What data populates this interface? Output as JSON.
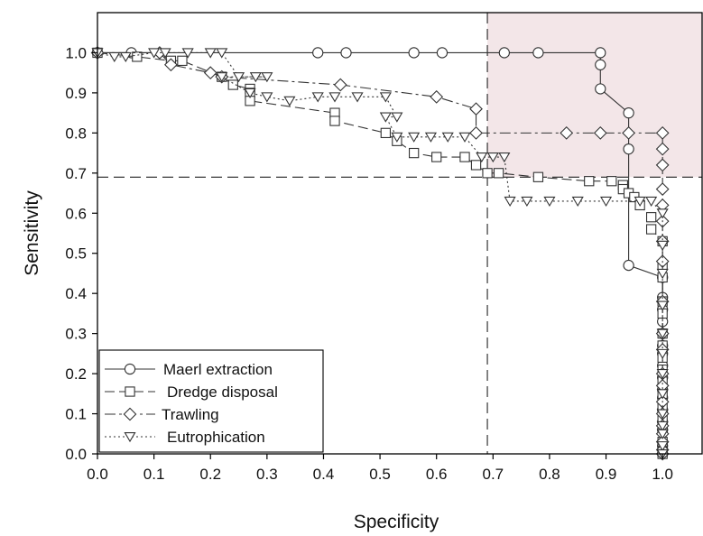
{
  "chart_data": {
    "type": "line",
    "xlabel": "Specificity",
    "ylabel": "Sensitivity",
    "xlim": [
      0,
      1.07
    ],
    "ylim": [
      0,
      1.1
    ],
    "x_ticks": [
      "0.0",
      "0.1",
      "0.2",
      "0.3",
      "0.4",
      "0.5",
      "0.6",
      "0.7",
      "0.8",
      "0.9",
      "1.0"
    ],
    "y_ticks": [
      "0.0",
      "0.1",
      "0.2",
      "0.3",
      "0.4",
      "0.5",
      "0.6",
      "0.7",
      "0.8",
      "0.9",
      "1.0"
    ],
    "threshold": {
      "specificity": 0.69,
      "sensitivity": 0.69
    },
    "shaded_region": {
      "x_from": 0.69,
      "y_from": 0.69,
      "color": "#f3e6e8"
    },
    "legend_placement": "bottom-left",
    "series": [
      {
        "name": "Maerl extraction",
        "marker": "circle",
        "dash": "solid",
        "x": [
          0.0,
          0.06,
          0.39,
          0.44,
          0.56,
          0.61,
          0.72,
          0.78,
          0.89,
          0.89,
          0.89,
          0.94,
          0.94,
          0.94,
          1.0,
          1.0,
          1.0,
          1.0,
          1.0,
          1.0,
          1.0,
          1.0,
          1.0,
          1.0,
          1.0,
          1.0,
          1.0,
          1.0,
          1.0,
          1.0,
          1.0,
          1.0
        ],
        "y": [
          1.0,
          1.0,
          1.0,
          1.0,
          1.0,
          1.0,
          1.0,
          1.0,
          1.0,
          0.97,
          0.91,
          0.85,
          0.76,
          0.47,
          0.44,
          0.39,
          0.36,
          0.33,
          0.3,
          0.27,
          0.25,
          0.22,
          0.19,
          0.16,
          0.14,
          0.11,
          0.08,
          0.06,
          0.03,
          0.02,
          0.01,
          0.0
        ]
      },
      {
        "name": "Dredge disposal",
        "marker": "square",
        "dash": "dashed",
        "x": [
          0.0,
          0.07,
          0.13,
          0.15,
          0.22,
          0.24,
          0.27,
          0.27,
          0.27,
          0.42,
          0.42,
          0.51,
          0.53,
          0.56,
          0.6,
          0.65,
          0.67,
          0.69,
          0.71,
          0.78,
          0.87,
          0.91,
          0.93,
          0.93,
          0.94,
          0.95,
          0.96,
          0.98,
          0.98,
          1.0,
          1.0,
          1.0,
          1.0,
          1.0,
          1.0,
          1.0,
          1.0,
          1.0,
          1.0,
          1.0,
          1.0,
          1.0,
          1.0,
          1.0,
          1.0
        ],
        "y": [
          1.0,
          0.99,
          0.98,
          0.98,
          0.94,
          0.92,
          0.91,
          0.9,
          0.88,
          0.85,
          0.83,
          0.8,
          0.78,
          0.75,
          0.74,
          0.74,
          0.72,
          0.7,
          0.7,
          0.69,
          0.68,
          0.68,
          0.67,
          0.66,
          0.65,
          0.64,
          0.62,
          0.59,
          0.56,
          0.53,
          0.47,
          0.44,
          0.38,
          0.35,
          0.3,
          0.27,
          0.24,
          0.21,
          0.18,
          0.15,
          0.12,
          0.09,
          0.06,
          0.03,
          0.0
        ]
      },
      {
        "name": "Trawling",
        "marker": "diamond",
        "dash": "dashdot",
        "x": [
          0.0,
          0.11,
          0.13,
          0.2,
          0.22,
          0.43,
          0.6,
          0.67,
          0.67,
          0.83,
          0.89,
          0.94,
          1.0,
          1.0,
          1.0,
          1.0,
          1.0,
          1.0,
          1.0,
          1.0,
          1.0,
          1.0,
          1.0,
          1.0,
          1.0,
          1.0,
          1.0,
          1.0,
          1.0,
          1.0,
          1.0,
          1.0
        ],
        "y": [
          1.0,
          1.0,
          0.97,
          0.95,
          0.94,
          0.92,
          0.89,
          0.86,
          0.8,
          0.8,
          0.8,
          0.8,
          0.8,
          0.76,
          0.72,
          0.66,
          0.62,
          0.58,
          0.53,
          0.48,
          0.38,
          0.3,
          0.26,
          0.2,
          0.17,
          0.13,
          0.1,
          0.07,
          0.05,
          0.03,
          0.01,
          0.0
        ]
      },
      {
        "name": "Eutrophication",
        "marker": "triangle-down",
        "dash": "dotted",
        "x": [
          0.0,
          0.03,
          0.05,
          0.1,
          0.12,
          0.16,
          0.2,
          0.22,
          0.25,
          0.28,
          0.3,
          0.22,
          0.27,
          0.3,
          0.34,
          0.39,
          0.42,
          0.46,
          0.51,
          0.53,
          0.51,
          0.53,
          0.56,
          0.59,
          0.62,
          0.65,
          0.68,
          0.7,
          0.72,
          0.73,
          0.76,
          0.8,
          0.85,
          0.9,
          0.96,
          0.98,
          1.0,
          1.0,
          1.0,
          1.0,
          1.0,
          1.0,
          1.0,
          1.0,
          1.0,
          1.0,
          1.0,
          1.0,
          1.0
        ],
        "y": [
          1.0,
          0.99,
          0.99,
          1.0,
          1.0,
          1.0,
          1.0,
          1.0,
          0.94,
          0.94,
          0.94,
          0.94,
          0.9,
          0.89,
          0.88,
          0.89,
          0.89,
          0.89,
          0.89,
          0.84,
          0.84,
          0.79,
          0.79,
          0.79,
          0.79,
          0.79,
          0.74,
          0.74,
          0.74,
          0.63,
          0.63,
          0.63,
          0.63,
          0.63,
          0.63,
          0.63,
          0.6,
          0.52,
          0.45,
          0.37,
          0.3,
          0.25,
          0.2,
          0.15,
          0.1,
          0.07,
          0.05,
          0.02,
          0.0
        ]
      }
    ]
  }
}
